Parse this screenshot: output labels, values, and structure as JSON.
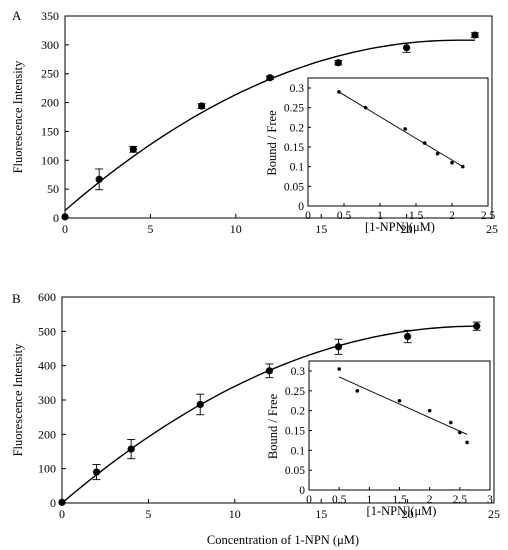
{
  "chart_data": [
    {
      "type": "scatter",
      "panel_label": "A",
      "ylabel": "Fluorescence Intensity",
      "xlabel": "",
      "xlim": [
        0,
        25
      ],
      "ylim": [
        0,
        350
      ],
      "xticks": [
        0,
        5,
        10,
        15,
        20,
        25
      ],
      "yticks": [
        0,
        50,
        100,
        150,
        200,
        250,
        300,
        350
      ],
      "points": [
        {
          "x": 0,
          "y": 2,
          "err": 0
        },
        {
          "x": 2,
          "y": 67,
          "err": 18
        },
        {
          "x": 4,
          "y": 119,
          "err": 5
        },
        {
          "x": 8,
          "y": 194,
          "err": 4
        },
        {
          "x": 12,
          "y": 243,
          "err": 3
        },
        {
          "x": 16,
          "y": 269,
          "err": 4
        },
        {
          "x": 20,
          "y": 295,
          "err": 8
        },
        {
          "x": 24,
          "y": 317,
          "err": 4
        }
      ],
      "fit_curve": {
        "type": "saturation",
        "bmax": 308,
        "x_at_max": 23,
        "y0": 13
      },
      "inset": {
        "type": "scatter",
        "ylabel": "Bound / Free",
        "xlabel": "[1-NPN](μM)",
        "xlim": [
          0,
          2.5
        ],
        "ylim": [
          0,
          0.3
        ],
        "xticks": [
          0,
          0.5,
          1,
          1.5,
          2,
          2.5
        ],
        "yticks": [
          0,
          0.05,
          0.1,
          0.15,
          0.2,
          0.25,
          0.3
        ],
        "points": [
          {
            "x": 0.43,
            "y": 0.29
          },
          {
            "x": 0.8,
            "y": 0.25
          },
          {
            "x": 1.35,
            "y": 0.196
          },
          {
            "x": 1.62,
            "y": 0.16
          },
          {
            "x": 1.8,
            "y": 0.133
          },
          {
            "x": 2.0,
            "y": 0.11
          },
          {
            "x": 2.15,
            "y": 0.1
          }
        ],
        "fit_line": {
          "x1": 0.43,
          "y1": 0.29,
          "x2": 2.15,
          "y2": 0.1
        }
      }
    },
    {
      "type": "scatter",
      "panel_label": "B",
      "ylabel": "Fluorescence Intensity",
      "xlabel": "Concentration of 1-NPN (μM)",
      "xlim": [
        0,
        25
      ],
      "ylim": [
        0,
        600
      ],
      "xticks": [
        0,
        5,
        10,
        15,
        20,
        25
      ],
      "yticks": [
        0,
        100,
        200,
        300,
        400,
        500,
        600
      ],
      "points": [
        {
          "x": 0,
          "y": 2,
          "err": 0
        },
        {
          "x": 2,
          "y": 90,
          "err": 22
        },
        {
          "x": 4,
          "y": 157,
          "err": 28
        },
        {
          "x": 8,
          "y": 287,
          "err": 30
        },
        {
          "x": 12,
          "y": 385,
          "err": 20
        },
        {
          "x": 16,
          "y": 455,
          "err": 22
        },
        {
          "x": 20,
          "y": 485,
          "err": 18
        },
        {
          "x": 24,
          "y": 515,
          "err": 12
        }
      ],
      "fit_curve": {
        "type": "saturation",
        "bmax": 515,
        "x_at_max": 24,
        "y0": 0
      },
      "inset": {
        "type": "scatter",
        "ylabel": "Bound / Free",
        "xlabel": "[1-NPN](μM)",
        "xlim": [
          0,
          3
        ],
        "ylim": [
          0,
          0.3
        ],
        "xticks": [
          0,
          0.5,
          1,
          1.5,
          2,
          2.5,
          3
        ],
        "yticks": [
          0,
          0.05,
          0.1,
          0.15,
          0.2,
          0.25,
          0.3
        ],
        "points": [
          {
            "x": 0.5,
            "y": 0.305
          },
          {
            "x": 0.8,
            "y": 0.25
          },
          {
            "x": 1.5,
            "y": 0.225
          },
          {
            "x": 2.0,
            "y": 0.2
          },
          {
            "x": 2.35,
            "y": 0.17
          },
          {
            "x": 2.5,
            "y": 0.145
          },
          {
            "x": 2.62,
            "y": 0.12
          }
        ],
        "fit_line": {
          "x1": 0.5,
          "y1": 0.285,
          "x2": 2.62,
          "y2": 0.14
        }
      }
    }
  ]
}
